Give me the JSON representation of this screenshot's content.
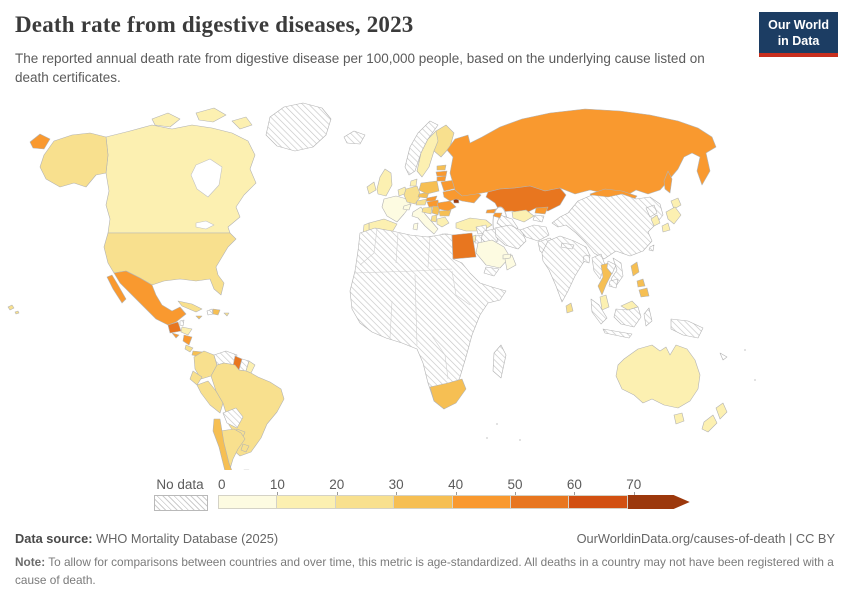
{
  "header": {
    "title": "Death rate from digestive diseases, 2023",
    "subtitle": "The reported annual death rate from digestive disease per 100,000 people, based on the underlying cause listed on death certificates.",
    "logo_line1": "Our World",
    "logo_line2": "in Data",
    "logo_bg": "#1c3d63",
    "logo_accent": "#c82f1e"
  },
  "chart_data": {
    "type": "heatmap",
    "subtype": "choropleth-world-map",
    "title": "Death rate from digestive diseases, 2023",
    "unit": "deaths per 100,000 people",
    "year": "2023",
    "legend_bins": [
      "0-10",
      "10-20",
      "20-30",
      "30-40",
      "40-50",
      "50-60",
      "60-70",
      "70+"
    ],
    "no_data_label": "No data",
    "country_bins": {
      "canada": "10-20",
      "united-states": "20-30",
      "alaska": "20-30",
      "greenland": "no data",
      "mexico": "40-50",
      "guatemala": "50-60",
      "belize": "no data",
      "honduras": "10-20",
      "el-salvador": "40-50",
      "nicaragua": "40-50",
      "costa-rica": "20-30",
      "panama": "30-40",
      "cuba": "20-30",
      "jamaica": "30-40",
      "haiti": "no data",
      "dominican-republic": "30-40",
      "colombia": "20-30",
      "venezuela": "no data",
      "guyana": "50-60",
      "suriname": "no data",
      "ecuador": "20-30",
      "peru": "20-30",
      "brazil": "20-30",
      "bolivia": "no data",
      "paraguay": "20-30",
      "chile": "30-40",
      "argentina": "20-30",
      "uruguay": "20-30",
      "iceland": "no data",
      "norway": "no data",
      "sweden": "10-20",
      "finland": "20-30",
      "united-kingdom": "10-20",
      "ireland": "10-20",
      "france": "0-10",
      "spain": "10-20",
      "portugal": "10-20",
      "germany": "20-30",
      "italy": "0-10",
      "switzerland": "0-10",
      "austria": "20-30",
      "poland": "30-40",
      "czechia": "30-40",
      "slovakia": "40-50",
      "hungary": "40-50",
      "romania": "40-50",
      "moldova": "70+",
      "ukraine": "40-50",
      "belarus": "40-50",
      "lithuania": "40-50",
      "latvia": "40-50",
      "estonia": "30-40",
      "greece": "10-20",
      "bulgaria": "30-40",
      "serbia": "30-40",
      "turkey": "10-20",
      "russia": "40-50",
      "kazakhstan": "50-60",
      "mongolia": "40-50",
      "china": "no data",
      "india": "no data",
      "japan": "10-20",
      "south-korea": "10-20",
      "north-korea": "no data",
      "thailand": "30-40",
      "philippines": "30-40",
      "malaysia": "10-20",
      "indonesia": "no data",
      "vietnam": "no data",
      "myanmar": "no data",
      "iran": "no data",
      "iraq": "no data",
      "saudi-arabia": "0-10",
      "oman": "0-10",
      "uae": "0-10",
      "yemen": "no data",
      "egypt": "50-60",
      "south-africa": "30-40",
      "rest-of-africa": "no data",
      "sri-lanka": "20-30",
      "uzbekistan": "10-20",
      "kyrgyzstan": "40-50",
      "turkmenistan": "no data",
      "australia": "10-20",
      "new-zealand": "10-20",
      "papua-new-guinea": "no data",
      "madagascar": "no data"
    }
  },
  "legend": {
    "no_data_label": "No data",
    "ticks": [
      "0",
      "10",
      "20",
      "30",
      "40",
      "50",
      "60",
      "70"
    ],
    "colors": [
      "#fdfbe1",
      "#fcf0b1",
      "#f8e08e",
      "#f6bf53",
      "#f9992f",
      "#e8761f",
      "#d25011",
      "#9c380c"
    ]
  },
  "map": {
    "bin_colors": {
      "b0": "#fdfbe1",
      "b1": "#fcf0b1",
      "b2": "#f8e08e",
      "b3": "#f6bf53",
      "b4": "#f9992f",
      "b5": "#e8761f",
      "b6": "#d25011",
      "b7": "#9c380c"
    },
    "countries": {
      "greenland": "nodata",
      "canada": "b1",
      "canada-islands": "b1",
      "alaska": "b2",
      "usa": "b2",
      "hawaii": "b2",
      "mexico": "b4",
      "baja": "b4",
      "guatemala": "b5",
      "belize": "nodata",
      "honduras": "b1",
      "el-salvador": "b4",
      "nicaragua": "b4",
      "costa-rica": "b2",
      "panama": "b3",
      "cuba": "b2",
      "jamaica": "b3",
      "haiti": "nodata",
      "dominican-republic": "b3",
      "puerto-rico": "b2",
      "colombia": "b2",
      "venezuela": "nodata",
      "guyana": "b5",
      "suriname": "nodata",
      "french-guiana": "b1",
      "ecuador": "b2",
      "peru": "b2",
      "brazil": "b2",
      "bolivia": "nodata",
      "paraguay": "b2",
      "argentina": "b2",
      "chile": "b3",
      "uruguay": "b2",
      "falkland": "nodata",
      "iceland": "nodata",
      "norway": "nodata",
      "sweden": "b1",
      "finland": "b2",
      "denmark": "b1",
      "uk": "b1",
      "ireland": "b1",
      "benelux": "b1",
      "france": "b0",
      "spain": "b1",
      "portugal": "b1",
      "germany": "b2",
      "switzerland": "b0",
      "italy": "b0",
      "austria": "b2",
      "czechia": "b3",
      "poland": "b3",
      "slovakia": "b4",
      "hungary": "b4",
      "croatia": "b2",
      "serbia": "b3",
      "albania": "b2",
      "greece": "b1",
      "bulgaria": "b3",
      "romania": "b4",
      "moldova": "b7",
      "ukraine": "b4",
      "belarus": "b4",
      "lithuania": "b4",
      "latvia": "b4",
      "estonia": "b3",
      "russia": "b4",
      "russia-sakhalin": "b4",
      "russia-chukotka": "b4",
      "kazakhstan": "b5",
      "mongolia": "b4",
      "china": "nodata",
      "uzbekistan": "b1",
      "turkmenistan": "nodata",
      "kyrgyzstan": "b4",
      "tajikistan": "nodata",
      "afghanistan": "nodata",
      "pakistan": "nodata",
      "iran": "nodata",
      "iraq": "nodata",
      "syria": "nodata",
      "turkey": "b1",
      "georgia": "b4",
      "azerbaijan": "b4",
      "saudi-arabia": "b0",
      "yemen": "nodata",
      "oman": "b0",
      "uae": "b0",
      "israel": "b1",
      "jordan": "nodata",
      "egypt": "b5",
      "africa": "nodata",
      "south-africa": "b3",
      "madagascar": "nodata",
      "india": "nodata",
      "sri-lanka": "b2",
      "bangladesh": "nodata",
      "nepal": "nodata",
      "myanmar": "nodata",
      "thailand": "b3",
      "laos": "nodata",
      "vietnam": "nodata",
      "cambodia": "nodata",
      "malaysia": "b1",
      "malaysia-borneo": "b1",
      "indonesia-borneo": "nodata",
      "sumatra": "nodata",
      "java": "nodata",
      "sulawesi": "nodata",
      "new-guinea": "nodata",
      "philippines": "b3",
      "north-korea": "nodata",
      "south-korea": "b1",
      "japan": "b1",
      "taiwan": "nodata",
      "australia": "b1",
      "tasmania": "b1",
      "nz-north": "b1",
      "nz-south": "b1",
      "new-caledonia": "nodata"
    }
  },
  "footer": {
    "source_label": "Data source:",
    "source_value": " WHO Mortality Database (2025)",
    "rights": "OurWorldinData.org/causes-of-death | CC BY",
    "note_label": "Note:",
    "note_text": " To allow for comparisons between countries and over time, this metric is age-standardized. All deaths in a country may not have been registered with a cause of death."
  }
}
